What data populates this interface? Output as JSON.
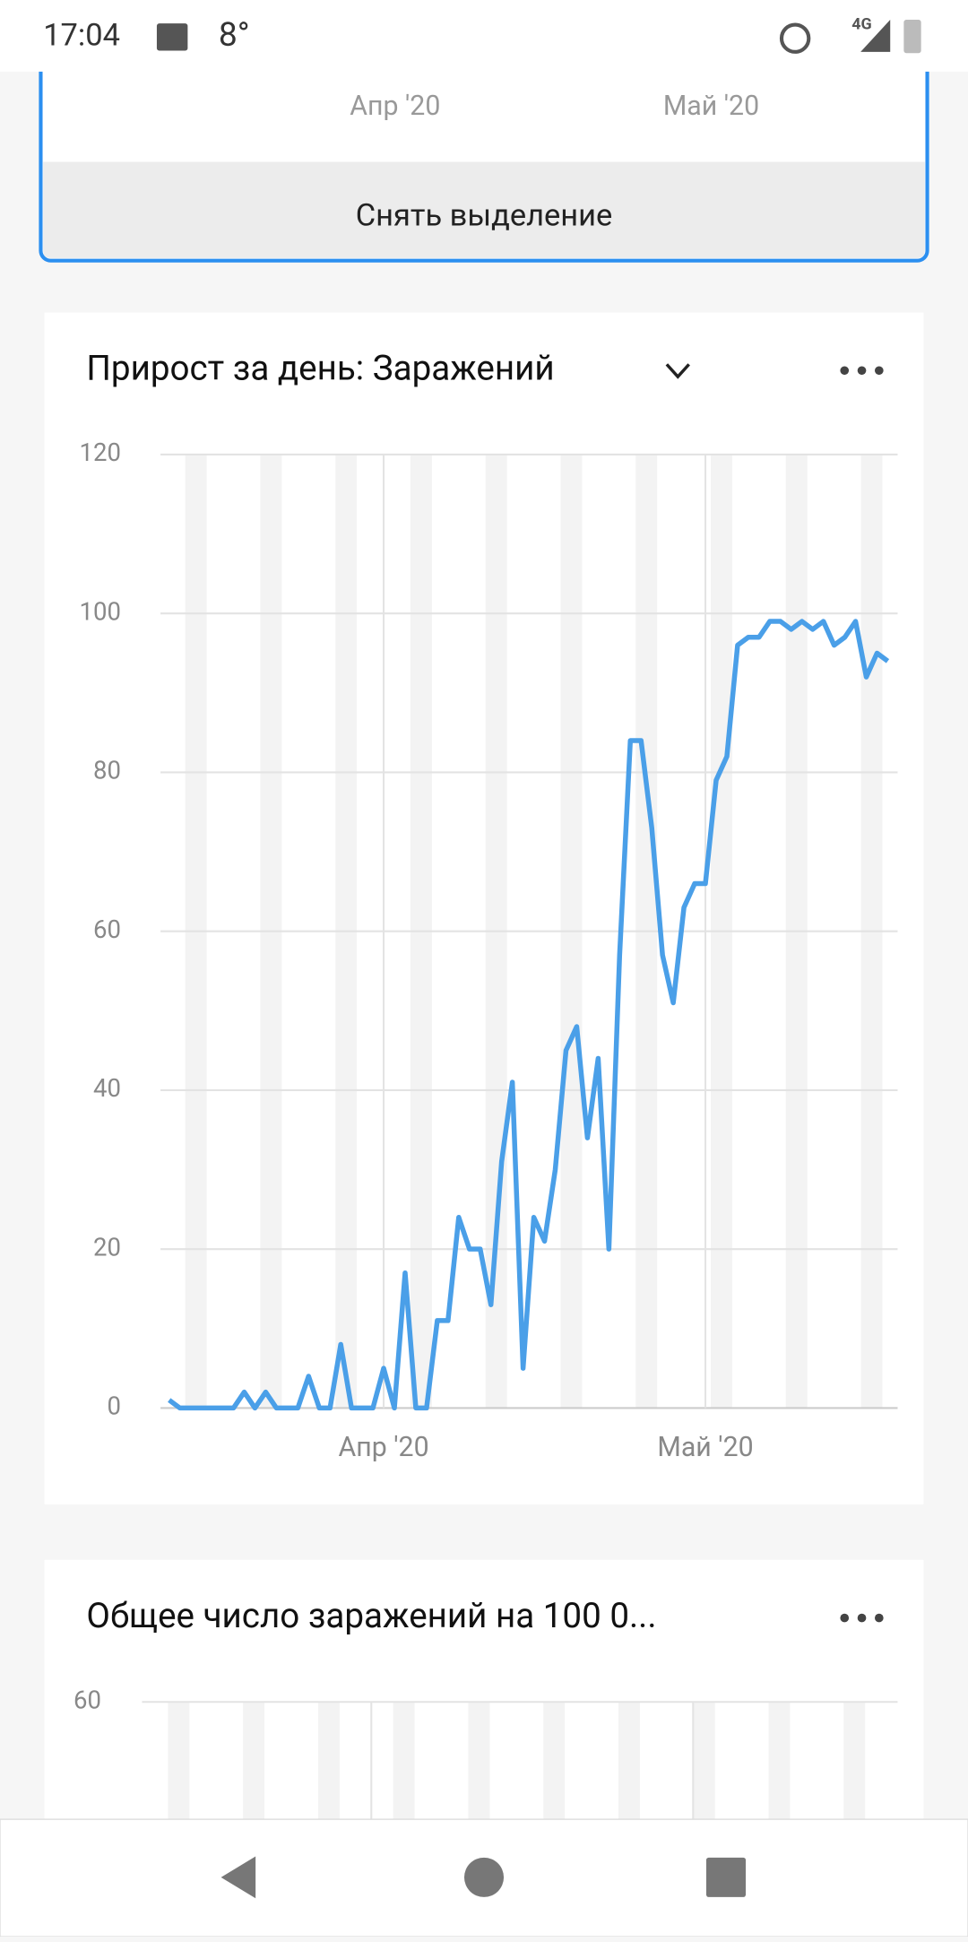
{
  "status_bar": {
    "time": "17:04",
    "temperature": "8°",
    "network": "4G"
  },
  "top_card": {
    "x_labels": [
      "Апр '20",
      "Май '20"
    ],
    "button": "Снять выделение"
  },
  "chart_data": {
    "type": "line",
    "title": "Прирост за день: Заражений",
    "categories": [
      null,
      null,
      null,
      null,
      null,
      null,
      null,
      null,
      null,
      null,
      null,
      null,
      null,
      null,
      null,
      null,
      null,
      null,
      null,
      null,
      "Апр '20",
      null,
      null,
      null,
      null,
      null,
      null,
      null,
      null,
      null,
      null,
      null,
      null,
      null,
      null,
      null,
      null,
      null,
      null,
      null,
      null,
      null,
      null,
      null,
      null,
      null,
      null,
      null,
      null,
      null,
      "Май '20",
      null,
      null,
      null,
      null,
      null,
      null,
      null,
      null,
      null,
      null,
      null,
      null,
      null,
      null,
      null,
      null,
      null
    ],
    "values": [
      1,
      0,
      0,
      0,
      0,
      0,
      0,
      2,
      0,
      2,
      0,
      0,
      0,
      4,
      0,
      0,
      8,
      0,
      0,
      0,
      5,
      0,
      17,
      0,
      0,
      11,
      11,
      24,
      20,
      20,
      13,
      31,
      41,
      5,
      24,
      21,
      30,
      45,
      48,
      34,
      44,
      20,
      57,
      84,
      84,
      73,
      57,
      51,
      63,
      66,
      66,
      79,
      82,
      96,
      97,
      97,
      99,
      99,
      98,
      99,
      98,
      99,
      96,
      97,
      99,
      92,
      95,
      94
    ],
    "color": "#4a9fe8",
    "ylim": [
      0,
      120
    ],
    "yticks": [
      0,
      20,
      40,
      60,
      80,
      100,
      120
    ],
    "grid": true
  },
  "second_card": {
    "title": "Общее число заражений на 100 0...",
    "ytick": "60"
  }
}
